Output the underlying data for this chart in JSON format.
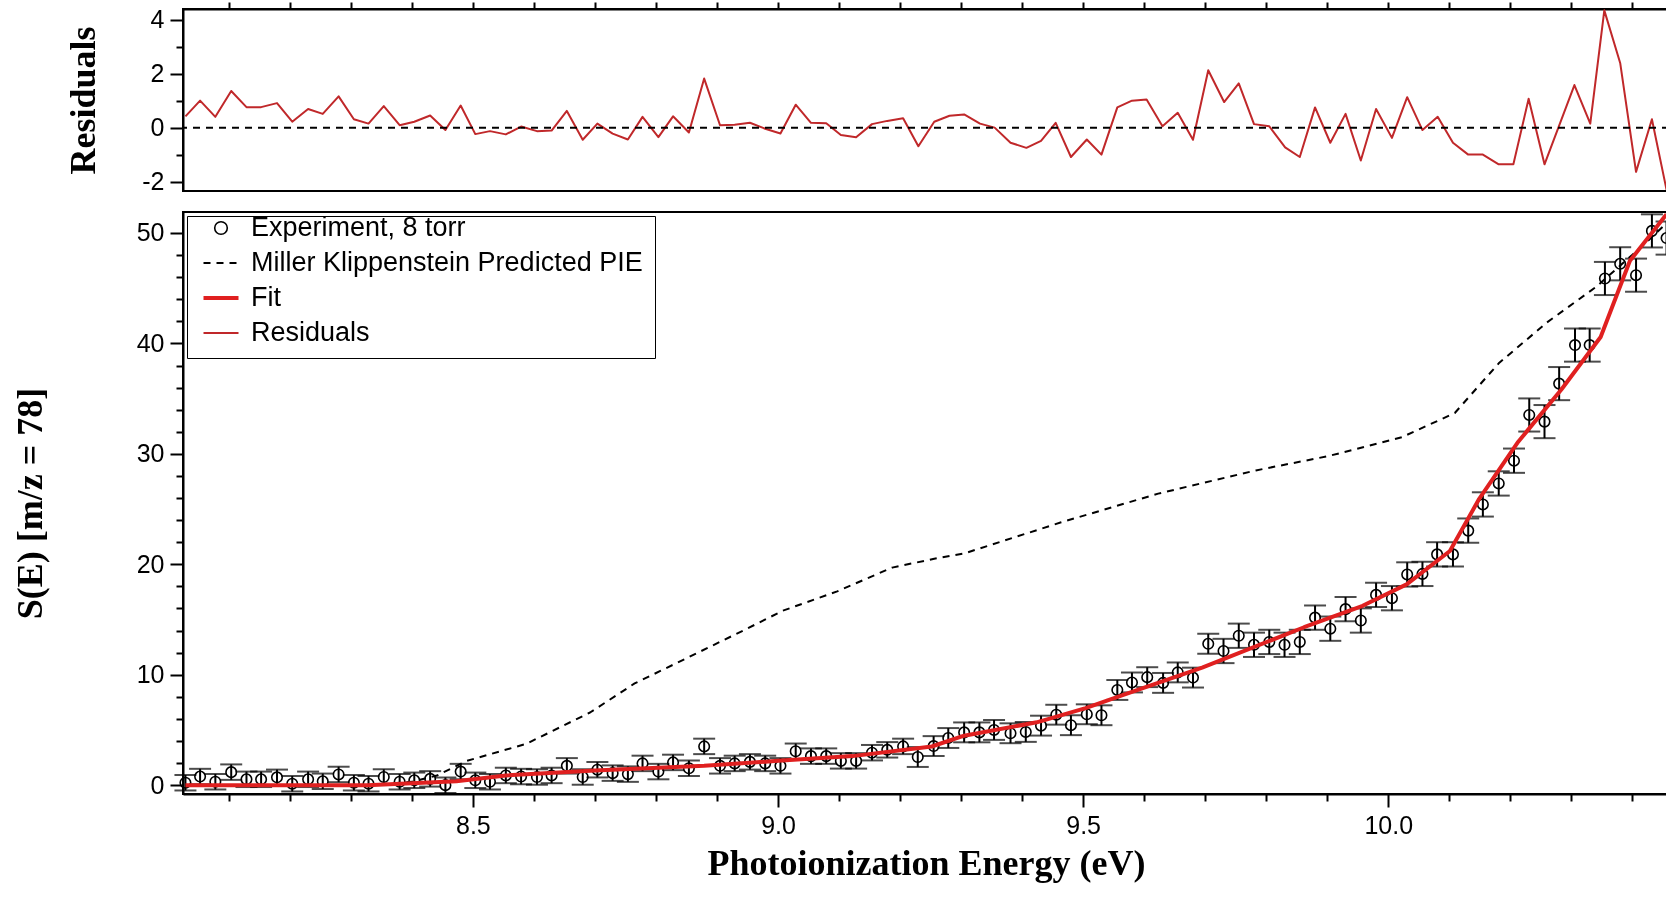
{
  "chart_data": [
    {
      "type": "line",
      "ylabel": "Residuals",
      "xlim": [
        8.025,
        10.46
      ],
      "ylim": [
        -2.35,
        4.4
      ],
      "tick_labels": "y",
      "xticks": [
        {
          "value": 8.1,
          "label": null
        },
        {
          "value": 8.2,
          "label": null
        },
        {
          "value": 8.3,
          "label": null
        },
        {
          "value": 8.4,
          "label": null
        },
        {
          "value": 8.5,
          "label": null
        },
        {
          "value": 8.6,
          "label": null
        },
        {
          "value": 8.7,
          "label": null
        },
        {
          "value": 8.8,
          "label": null
        },
        {
          "value": 8.9,
          "label": null
        },
        {
          "value": 9,
          "label": null
        },
        {
          "value": 9.1,
          "label": null
        },
        {
          "value": 9.2,
          "label": null
        },
        {
          "value": 9.3,
          "label": null
        },
        {
          "value": 9.4,
          "label": null
        },
        {
          "value": 9.5,
          "label": null
        },
        {
          "value": 9.6,
          "label": null
        },
        {
          "value": 9.7,
          "label": null
        },
        {
          "value": 9.8,
          "label": null
        },
        {
          "value": 9.9,
          "label": null
        },
        {
          "value": 10,
          "label": null
        },
        {
          "value": 10.1,
          "label": null
        },
        {
          "value": 10.2,
          "label": null
        },
        {
          "value": 10.3,
          "label": null
        },
        {
          "value": 10.4,
          "label": null
        }
      ],
      "yticks": [
        -2,
        {
          "value": -1,
          "label": null
        },
        0,
        {
          "value": 1,
          "label": null
        },
        2,
        {
          "value": 3,
          "label": null
        },
        4
      ],
      "ref_lines": [
        {
          "axis": "y",
          "value": 0,
          "line_style": "dashed",
          "color": "#000000"
        }
      ],
      "series": [
        {
          "name": "Residuals",
          "color": "#c0282a",
          "x": [
            8.029,
            8.053,
            8.078,
            8.104,
            8.129,
            8.153,
            8.179,
            8.204,
            8.23,
            8.254,
            8.28,
            8.305,
            8.329,
            8.354,
            8.38,
            8.404,
            8.43,
            8.455,
            8.48,
            8.504,
            8.528,
            8.554,
            8.579,
            8.605,
            8.629,
            8.654,
            8.68,
            8.704,
            8.729,
            8.754,
            8.778,
            8.804,
            8.828,
            8.854,
            8.879,
            8.905,
            8.929,
            8.954,
            8.979,
            9.004,
            9.029,
            9.054,
            9.079,
            9.103,
            9.128,
            9.154,
            9.179,
            9.205,
            9.23,
            9.256,
            9.281,
            9.305,
            9.331,
            9.355,
            9.381,
            9.407,
            9.431,
            9.455,
            9.48,
            9.506,
            9.53,
            9.556,
            9.58,
            9.604,
            9.63,
            9.655,
            9.68,
            9.705,
            9.731,
            9.755,
            9.78,
            9.805,
            9.831,
            9.855,
            9.88,
            9.905,
            9.93,
            9.955,
            9.98,
            10.006,
            10.031,
            10.056,
            10.081,
            10.106,
            10.131,
            10.155,
            10.181,
            10.205,
            10.23,
            10.256,
            10.305,
            10.331,
            10.354,
            10.38,
            10.406,
            10.432,
            10.456
          ],
          "values": [
            0.42,
            1.0,
            0.4,
            1.36,
            0.76,
            0.76,
            0.91,
            0.22,
            0.69,
            0.51,
            1.16,
            0.31,
            0.15,
            0.8,
            0.09,
            0.22,
            0.45,
            -0.09,
            0.82,
            -0.24,
            -0.13,
            -0.25,
            0.04,
            -0.13,
            -0.11,
            0.62,
            -0.45,
            0.15,
            -0.22,
            -0.44,
            0.4,
            -0.35,
            0.42,
            -0.18,
            1.82,
            0.09,
            0.11,
            0.18,
            -0.04,
            -0.22,
            0.85,
            0.18,
            0.16,
            -0.27,
            -0.36,
            0.13,
            0.25,
            0.35,
            -0.69,
            0.22,
            0.44,
            0.49,
            0.15,
            0,
            -0.56,
            -0.75,
            -0.49,
            0.18,
            -1.09,
            -0.44,
            -1.0,
            0.75,
            1.0,
            1.04,
            0.05,
            0.55,
            -0.45,
            2.13,
            0.95,
            1.64,
            0.13,
            0.05,
            -0.73,
            -1.09,
            0.75,
            -0.56,
            0.51,
            -1.22,
            0.69,
            -0.38,
            1.13,
            -0.09,
            0.4,
            -0.56,
            -1.0,
            -1.0,
            -1.36,
            -1.36,
            1.07,
            -1.36,
            1.58,
            0.15,
            4.35,
            2.4,
            -1.64,
            0.31,
            -2.31
          ]
        }
      ]
    },
    {
      "type": "line",
      "xlabel": "Photoionization Energy (eV)",
      "ylabel": "S(E) [m/z = 78]",
      "xlim": [
        8.025,
        10.46
      ],
      "ylim": [
        -0.8,
        51.9
      ],
      "legend": "top left",
      "xticks": [
        {
          "value": 8.1,
          "label": null
        },
        {
          "value": 8.2,
          "label": null
        },
        {
          "value": 8.3,
          "label": null
        },
        {
          "value": 8.4,
          "label": null
        },
        8.5,
        {
          "value": 8.6,
          "label": null
        },
        {
          "value": 8.7,
          "label": null
        },
        {
          "value": 8.8,
          "label": null
        },
        {
          "value": 8.9,
          "label": null
        },
        {
          "value": 9,
          "label": "9.0"
        },
        {
          "value": 9.1,
          "label": null
        },
        {
          "value": 9.2,
          "label": null
        },
        {
          "value": 9.3,
          "label": null
        },
        {
          "value": 9.4,
          "label": null
        },
        9.5,
        {
          "value": 9.6,
          "label": null
        },
        {
          "value": 9.7,
          "label": null
        },
        {
          "value": 9.8,
          "label": null
        },
        {
          "value": 9.9,
          "label": null
        },
        {
          "value": 10,
          "label": "10.0"
        },
        {
          "value": 10.1,
          "label": null
        },
        {
          "value": 10.2,
          "label": null
        },
        {
          "value": 10.3,
          "label": null
        },
        {
          "value": 10.4,
          "label": null
        }
      ],
      "yticks": [
        0,
        {
          "value": 2,
          "label": null
        },
        {
          "value": 4,
          "label": null
        },
        {
          "value": 6,
          "label": null
        },
        {
          "value": 8,
          "label": null
        },
        10,
        {
          "value": 12,
          "label": null
        },
        {
          "value": 14,
          "label": null
        },
        {
          "value": 16,
          "label": null
        },
        {
          "value": 18,
          "label": null
        },
        20,
        {
          "value": 22,
          "label": null
        },
        {
          "value": 24,
          "label": null
        },
        {
          "value": 26,
          "label": null
        },
        {
          "value": 28,
          "label": null
        },
        30,
        {
          "value": 32,
          "label": null
        },
        {
          "value": 34,
          "label": null
        },
        {
          "value": 36,
          "label": null
        },
        {
          "value": 38,
          "label": null
        },
        40,
        {
          "value": 42,
          "label": null
        },
        {
          "value": 44,
          "label": null
        },
        {
          "value": 46,
          "label": null
        },
        {
          "value": 48,
          "label": null
        },
        50
      ],
      "series": [
        {
          "name": "Experiment, 8 torr",
          "type": "scatter",
          "marker": "circle",
          "color": "#000000",
          "x": [
            8.029,
            8.053,
            8.078,
            8.104,
            8.129,
            8.153,
            8.179,
            8.204,
            8.23,
            8.254,
            8.28,
            8.305,
            8.329,
            8.354,
            8.38,
            8.404,
            8.43,
            8.455,
            8.48,
            8.504,
            8.528,
            8.554,
            8.579,
            8.605,
            8.629,
            8.654,
            8.68,
            8.704,
            8.729,
            8.754,
            8.778,
            8.804,
            8.828,
            8.854,
            8.879,
            8.905,
            8.929,
            8.954,
            8.979,
            9.004,
            9.029,
            9.054,
            9.079,
            9.103,
            9.128,
            9.154,
            9.179,
            9.205,
            9.229,
            9.255,
            9.279,
            9.305,
            9.33,
            9.354,
            9.381,
            9.406,
            9.431,
            9.456,
            9.48,
            9.506,
            9.53,
            9.556,
            9.58,
            9.605,
            9.631,
            9.655,
            9.68,
            9.705,
            9.73,
            9.755,
            9.78,
            9.805,
            9.83,
            9.855,
            9.88,
            9.905,
            9.93,
            9.955,
            9.98,
            10.006,
            10.031,
            10.056,
            10.08,
            10.106,
            10.131,
            10.155,
            10.181,
            10.206,
            10.231,
            10.256,
            10.28,
            10.306,
            10.33,
            10.355,
            10.38,
            10.406,
            10.432,
            10.456
          ],
          "values": [
            0.22,
            0.78,
            0.31,
            1.18,
            0.53,
            0.53,
            0.71,
            0.13,
            0.53,
            0.35,
            0.97,
            0.22,
            0.13,
            0.74,
            0.31,
            0.44,
            0.57,
            0,
            1.23,
            0.44,
            0.31,
            0.88,
            0.78,
            0.74,
            0.88,
            1.75,
            0.74,
            1.4,
            1.09,
            1.0,
            1.97,
            1.23,
            2.06,
            1.53,
            3.51,
            1.75,
            1.97,
            2.11,
            1.97,
            1.75,
            3.07,
            2.63,
            2.63,
            2.2,
            2.2,
            2.94,
            3.2,
            3.51,
            2.55,
            3.54,
            4.27,
            4.78,
            4.78,
            5.0,
            4.7,
            4.82,
            5.39,
            6.38,
            5.43,
            6.42,
            6.33,
            8.62,
            9.3,
            9.78,
            9.26,
            10.21,
            9.74,
            12.8,
            12.15,
            13.53,
            12.71,
            12.97,
            12.71,
            12.97,
            15.17,
            14.17,
            15.94,
            14.91,
            17.23,
            16.93,
            19.08,
            19.13,
            20.9,
            20.9,
            23.05,
            25.42,
            27.32,
            29.38,
            33.52,
            32.92,
            36.36,
            39.85,
            39.85,
            45.88,
            47.21,
            46.18,
            50.19,
            49.54
          ],
          "errors": [
            0.7,
            0.7,
            0.7,
            0.7,
            0.7,
            0.7,
            0.7,
            0.7,
            0.7,
            0.7,
            0.7,
            0.7,
            0.7,
            0.7,
            0.7,
            0.7,
            0.7,
            0.7,
            0.7,
            0.7,
            0.7,
            0.7,
            0.7,
            0.7,
            0.7,
            0.7,
            0.7,
            0.7,
            0.7,
            0.7,
            0.7,
            0.7,
            0.7,
            0.7,
            0.7,
            0.7,
            0.7,
            0.7,
            0.7,
            0.7,
            0.7,
            0.7,
            0.7,
            0.7,
            0.7,
            0.7,
            0.7,
            0.7,
            0.9,
            0.9,
            0.9,
            0.9,
            0.9,
            0.9,
            0.9,
            0.9,
            0.9,
            0.9,
            0.9,
            0.9,
            0.9,
            0.9,
            0.9,
            0.9,
            0.9,
            0.9,
            0.9,
            0.9,
            1.1,
            1.1,
            1.1,
            1.1,
            1.1,
            1.1,
            1.1,
            1.1,
            1.1,
            1.1,
            1.1,
            1.1,
            1.1,
            1.1,
            1.1,
            1.1,
            1.1,
            1.1,
            1.1,
            1.1,
            1.5,
            1.5,
            1.5,
            1.5,
            1.5,
            1.5,
            1.5,
            1.5,
            1.5,
            1.5
          ]
        },
        {
          "name": "Miller Klippenstein Predicted PIE",
          "type": "line",
          "line_style": "dashed",
          "color": "#000000",
          "x": [
            8.029,
            8.327,
            8.4,
            8.441,
            8.49,
            8.587,
            8.692,
            8.765,
            8.854,
            8.943,
            9.008,
            9.097,
            9.187,
            9.256,
            9.305,
            9.464,
            9.623,
            9.783,
            9.902,
            10.022,
            10.109,
            10.181,
            10.26,
            10.34,
            10.42,
            10.456
          ],
          "values": [
            0,
            0,
            0.3,
            0.87,
            2.2,
            3.73,
            6.58,
            9.21,
            11.6,
            14.0,
            15.8,
            17.55,
            19.7,
            20.5,
            20.98,
            23.8,
            26.4,
            28.5,
            29.8,
            31.5,
            33.7,
            38.2,
            41.9,
            45.1,
            49.0,
            50.9
          ]
        },
        {
          "name": "Fit",
          "color": "#e02020",
          "x": [
            8.029,
            8.327,
            8.473,
            8.554,
            8.7,
            8.879,
            9.0,
            9.122,
            9.252,
            9.305,
            9.424,
            9.504,
            9.56,
            9.695,
            9.862,
            9.958,
            10.03,
            10.101,
            10.149,
            10.213,
            10.284,
            10.348,
            10.396,
            10.456
          ],
          "values": [
            0,
            0,
            0.35,
            0.88,
            1.32,
            1.75,
            2.2,
            2.63,
            3.5,
            4.48,
            5.69,
            6.98,
            8.06,
            10.64,
            14.3,
            16.24,
            18.18,
            21.2,
            25.93,
            31.1,
            35.85,
            40.58,
            47.48,
            51.7
          ]
        }
      ]
    }
  ]
}
